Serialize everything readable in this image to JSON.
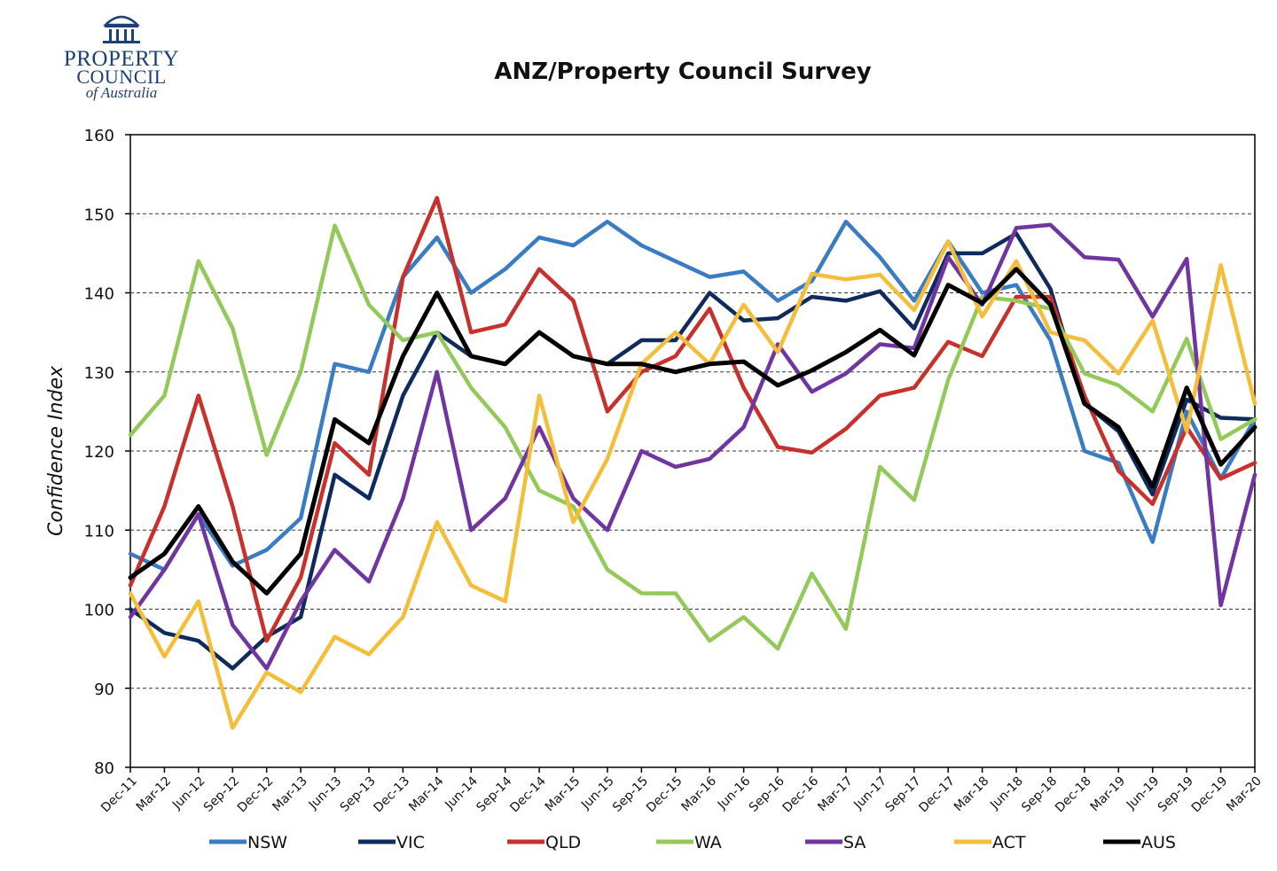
{
  "logo": {
    "icon": "building-icon",
    "line1": "PROPERTY",
    "line2": "COUNCIL",
    "line3": "of Australia",
    "color": "#1d3f77"
  },
  "chart_data": {
    "type": "line",
    "title": "ANZ/Property Council Survey",
    "xlabel": "",
    "ylabel": "Confidence Index",
    "ylim": [
      80,
      160
    ],
    "yticks": [
      80,
      90,
      100,
      110,
      120,
      130,
      140,
      150,
      160
    ],
    "grid": "horizontal-dashed",
    "legend": "bottom",
    "categories": [
      "Dec-11",
      "Mar-12",
      "Jun-12",
      "Sep-12",
      "Dec-12",
      "Mar-13",
      "Jun-13",
      "Sep-13",
      "Dec-13",
      "Mar-14",
      "Jun-14",
      "Sep-14",
      "Dec-14",
      "Mar-15",
      "Jun-15",
      "Sep-15",
      "Dec-15",
      "Mar-16",
      "Jun-16",
      "Sep-16",
      "Dec-16",
      "Mar-17",
      "Jun-17",
      "Sep-17",
      "Dec-17",
      "Mar-18",
      "Jun-18",
      "Sep-18",
      "Dec-18",
      "Mar-19",
      "Jun-19",
      "Sep-19",
      "Dec-19",
      "Mar-20"
    ],
    "series": [
      {
        "name": "NSW",
        "color": "#3a7cc4",
        "values": [
          107,
          105,
          112,
          105.5,
          107.5,
          111.5,
          131,
          130,
          142,
          147,
          140,
          143,
          147,
          146,
          149,
          146,
          144,
          142,
          142.7,
          139,
          141.5,
          149,
          144.5,
          139,
          146.5,
          140,
          141,
          134,
          120,
          118.5,
          108.5,
          125,
          116.5,
          124
        ]
      },
      {
        "name": "VIC",
        "color": "#0f2a5c",
        "values": [
          100,
          97,
          96,
          92.5,
          96.5,
          99,
          117,
          114,
          127,
          135,
          132,
          131,
          135,
          132,
          131,
          134,
          134,
          140,
          136.5,
          136.8,
          139.5,
          139,
          140.2,
          135.5,
          145,
          145,
          147.5,
          140.5,
          126,
          122.5,
          114.5,
          126.5,
          124.2,
          124
        ]
      },
      {
        "name": "QLD",
        "color": "#c8312b",
        "values": [
          103,
          113,
          127,
          113,
          96,
          104,
          121,
          117,
          142,
          152,
          135,
          136,
          143,
          139,
          125,
          130,
          132,
          138,
          128,
          120.5,
          119.8,
          122.8,
          127,
          128,
          133.8,
          132,
          139.5,
          139.5,
          127,
          117.5,
          113.3,
          123,
          116.5,
          118.5
        ]
      },
      {
        "name": "WA",
        "color": "#93c959",
        "values": [
          122,
          127,
          144,
          135.5,
          119.5,
          130,
          148.5,
          138.5,
          134,
          135,
          128,
          123,
          115,
          113,
          105,
          102,
          102,
          96,
          99,
          95,
          104.5,
          97.5,
          118,
          113.8,
          129,
          139.5,
          139,
          138,
          129.8,
          128.3,
          125,
          134.2,
          121.5,
          124
        ]
      },
      {
        "name": "SA",
        "color": "#7135a2",
        "values": [
          99,
          105,
          112,
          98,
          92.5,
          101,
          107.5,
          103.5,
          114,
          130,
          110,
          114,
          123,
          114,
          110,
          120,
          118,
          119,
          123,
          133.5,
          127.5,
          129.8,
          133.5,
          133,
          144.5,
          138.5,
          148.2,
          148.6,
          144.5,
          144.2,
          137,
          144.3,
          100.5,
          117
        ]
      },
      {
        "name": "ACT",
        "color": "#f4bd3a",
        "values": [
          102,
          94,
          101,
          85,
          92,
          89.5,
          96.5,
          94.3,
          99,
          111,
          103,
          101,
          127,
          111,
          119,
          131,
          135,
          131,
          138.5,
          132.5,
          142.4,
          141.7,
          142.3,
          137.8,
          146.5,
          137,
          144,
          135,
          134,
          129.8,
          136.5,
          122.5,
          143.5,
          126
        ]
      },
      {
        "name": "AUS",
        "color": "#000000",
        "values": [
          104,
          107,
          113,
          106,
          102,
          107,
          124,
          121,
          132,
          140,
          132,
          131,
          135,
          132,
          131,
          131,
          130,
          131,
          131.3,
          128.3,
          130.2,
          132.5,
          135.3,
          132.1,
          141,
          138.7,
          143,
          138.5,
          126,
          123,
          115.5,
          128,
          118.3,
          123
        ]
      }
    ]
  }
}
